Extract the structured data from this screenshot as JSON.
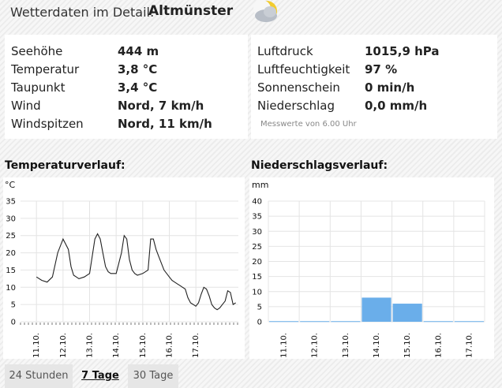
{
  "header": {
    "label": "Wetterdaten im Detail:",
    "location": "Altmünster",
    "weather_icon": "partly-cloudy-night-icon"
  },
  "details_left": [
    {
      "key": "Seehöhe",
      "value": "444 m"
    },
    {
      "key": "Temperatur",
      "value": "3,8 °C"
    },
    {
      "key": "Taupunkt",
      "value": "3,4 °C"
    },
    {
      "key": "Wind",
      "value": "Nord, 7 km/h"
    },
    {
      "key": "Windspitzen",
      "value": "Nord, 11 km/h"
    }
  ],
  "details_right": [
    {
      "key": "Luftdruck",
      "value": "1015,9 hPa"
    },
    {
      "key": "Luftfeuchtigkeit",
      "value": "97 %"
    },
    {
      "key": "Sonnenschein",
      "value": "0 min/h"
    },
    {
      "key": "Niederschlag",
      "value": "0,0 mm/h"
    }
  ],
  "measure_note": "Messwerte von 6.00 Uhr",
  "temp_section": {
    "title": "Temperaturverlauf:",
    "unit": "°C"
  },
  "precip_section": {
    "title": "Niederschlagsverlauf:",
    "unit": "mm"
  },
  "tabs": [
    {
      "label": "24 Stunden",
      "active": false
    },
    {
      "label": "7 Tage",
      "active": true
    },
    {
      "label": "30 Tage",
      "active": false
    }
  ],
  "colors": {
    "bar": "#6aaeea",
    "line": "#222222",
    "grid": "#e4e4e4"
  },
  "chart_data": [
    {
      "type": "line",
      "title": "",
      "ylabel": "°C",
      "ylim": [
        0,
        35
      ],
      "yticks": [
        0,
        5,
        10,
        15,
        20,
        25,
        30,
        35
      ],
      "xticks": [
        "11.10.",
        "12.10.",
        "13.10.",
        "14.10.",
        "15.10.",
        "16.10.",
        "17.10."
      ],
      "x": [
        0,
        0.2,
        0.4,
        0.6,
        0.8,
        1,
        1.2,
        1.3,
        1.4,
        1.5,
        1.6,
        1.8,
        2,
        2.2,
        2.3,
        2.4,
        2.5,
        2.6,
        2.7,
        2.8,
        3,
        3.2,
        3.3,
        3.4,
        3.5,
        3.6,
        3.7,
        3.8,
        4,
        4.2,
        4.3,
        4.4,
        4.5,
        4.6,
        4.7,
        4.8,
        5,
        5.1,
        5.2,
        5.3,
        5.4,
        5.5,
        5.6,
        5.7,
        5.8,
        5.9,
        6,
        6.1,
        6.2,
        6.3,
        6.4,
        6.5,
        6.6,
        6.7,
        6.8,
        6.9,
        7,
        7.1,
        7.2,
        7.3,
        7.4,
        7.5
      ],
      "series": [
        {
          "values": [
            13,
            12,
            11.5,
            13,
            20,
            24,
            21,
            16,
            13.5,
            13,
            12.5,
            13,
            14,
            24,
            25.5,
            24,
            20,
            16,
            14.5,
            14,
            14,
            20,
            25,
            24,
            18,
            15,
            14,
            13.5,
            14,
            15,
            24,
            24,
            21,
            19,
            17,
            15,
            13,
            12,
            11.5,
            11,
            10.5,
            10,
            9.5,
            7,
            5.5,
            5,
            4.5,
            5.5,
            8,
            10,
            9.5,
            7.5,
            5,
            4,
            3.5,
            4,
            5,
            6,
            9,
            8.5,
            5,
            5.5
          ]
        }
      ]
    },
    {
      "type": "bar",
      "title": "",
      "ylabel": "mm",
      "ylim": [
        0,
        40
      ],
      "yticks": [
        0,
        5,
        10,
        15,
        20,
        25,
        30,
        35,
        40
      ],
      "categories": [
        "11.10.",
        "12.10.",
        "13.10.",
        "14.10.",
        "15.10.",
        "16.10.",
        "17.10."
      ],
      "values": [
        0.2,
        0.2,
        0.2,
        8,
        6,
        0.2,
        0.2
      ]
    }
  ]
}
